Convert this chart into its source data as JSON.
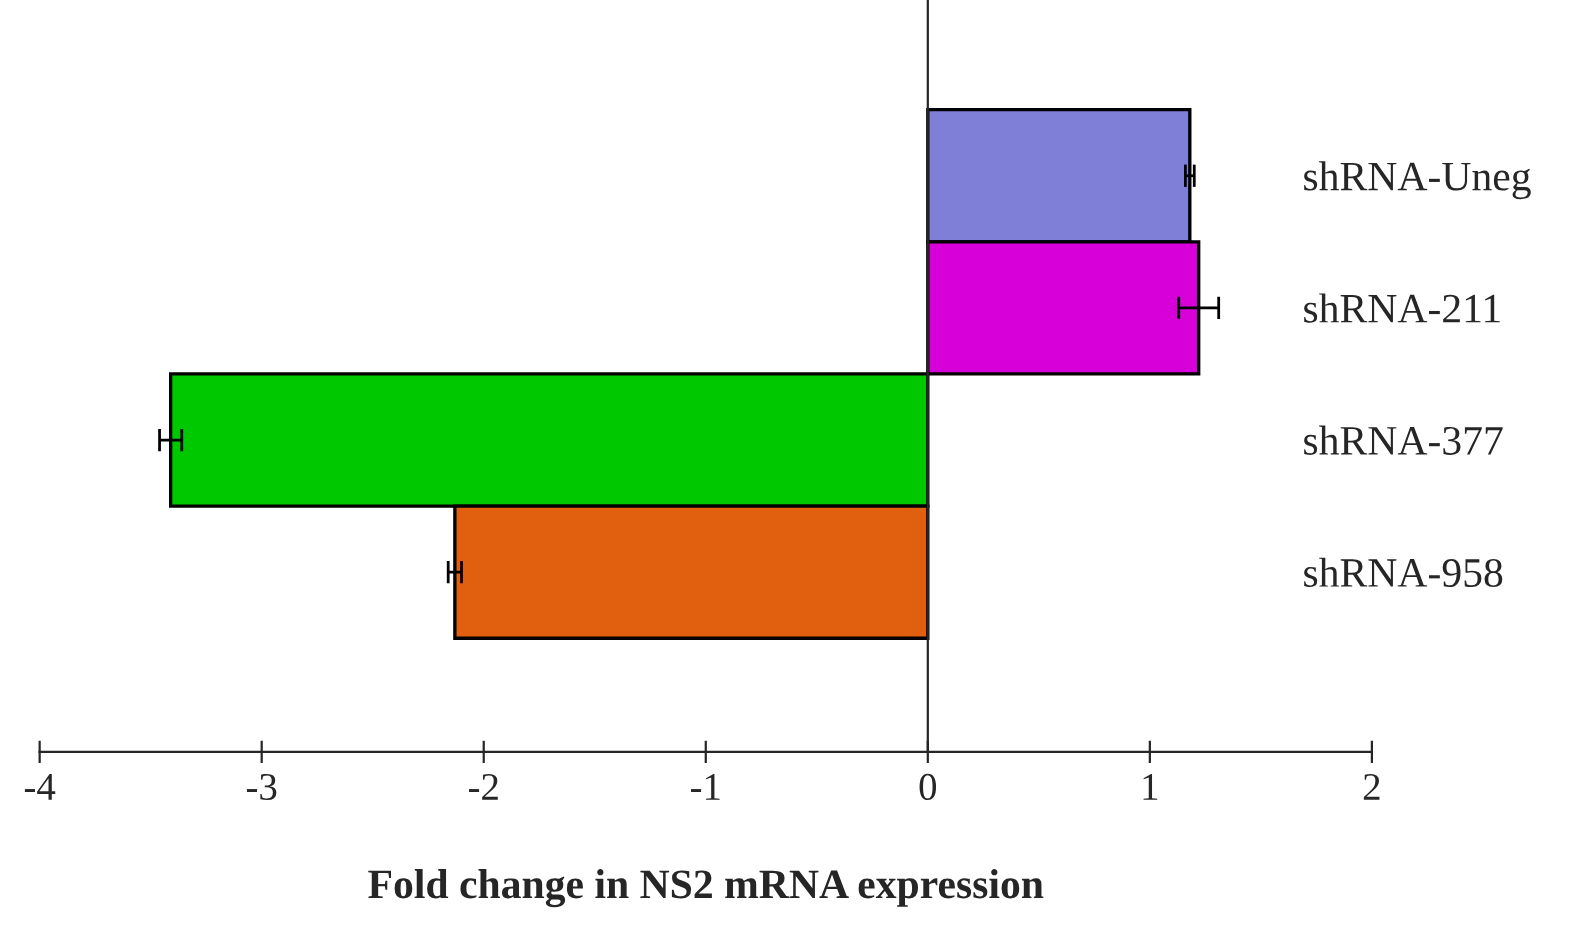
{
  "chart_data": {
    "type": "bar",
    "orientation": "horizontal",
    "xlabel": "Fold change in NS2 mRNA expression",
    "categories": [
      "shRNA-Uneg",
      "shRNA-211",
      "shRNA-377",
      "shRNA-958"
    ],
    "values": [
      1.18,
      1.22,
      -3.41,
      -2.13
    ],
    "errors": [
      0.02,
      0.09,
      0.05,
      0.03
    ],
    "colors": [
      "#7f7fd8",
      "#d800d8",
      "#00c800",
      "#e06010"
    ],
    "xlim": [
      -4,
      2
    ],
    "xticks": [
      -4,
      -3,
      -2,
      -1,
      0,
      1,
      2
    ],
    "legend": false
  }
}
